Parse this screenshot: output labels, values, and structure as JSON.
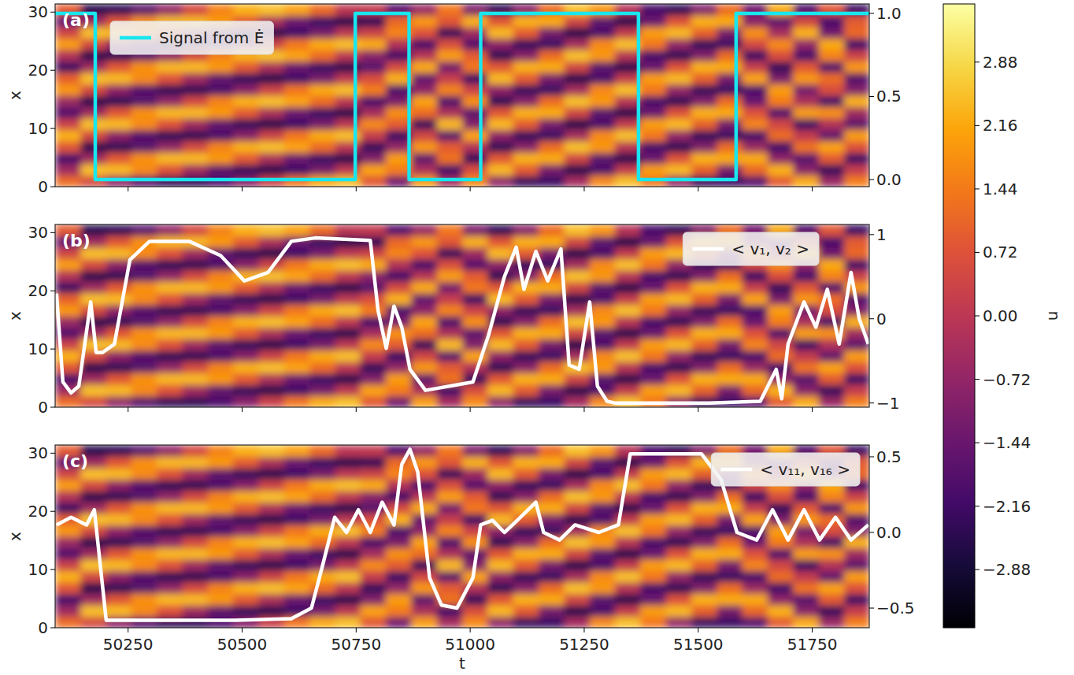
{
  "chart_data": {
    "type": "heatmap",
    "xlabel": "t",
    "ylabel": "x",
    "xlim": [
      50090,
      51875
    ],
    "xticks": [
      50250,
      50500,
      50750,
      51000,
      51250,
      51500,
      51750
    ],
    "ylim": [
      0,
      31.4
    ],
    "yticks": [
      0,
      10,
      20,
      30
    ],
    "t_bins": [
      50090,
      50146,
      50202,
      50257,
      50313,
      50369,
      50425,
      50480,
      50536,
      50592,
      50648,
      50704,
      50759,
      50815,
      50871,
      50927,
      50983,
      51038,
      51094,
      51150,
      51206,
      51262,
      51317,
      51373,
      51429,
      51485,
      51541,
      51596,
      51652,
      51708,
      51764,
      51820,
      51875
    ],
    "x_bins": [
      0,
      1.96,
      3.93,
      5.89,
      7.85,
      9.81,
      11.78,
      13.74,
      15.7,
      17.66,
      19.63,
      21.59,
      23.55,
      25.51,
      27.48,
      29.44,
      31.4
    ],
    "cells": [
      [
        1.2,
        -0.5,
        -2.0,
        0.8,
        2.3,
        0.3,
        -1.8,
        -0.6,
        1.9,
        1.0,
        -2.2,
        -0.2,
        2.0,
        0.4,
        -1.5,
        0.9
      ],
      [
        0.5,
        2.5,
        -0.5,
        -2.5,
        0.5,
        2.5,
        -0.5,
        -2.5,
        0.5,
        2.5,
        -0.5,
        -2.5,
        0.5,
        2.5,
        -0.5,
        -2.5
      ],
      [
        -0.8,
        2.4,
        0.8,
        -2.4,
        -0.8,
        2.4,
        0.8,
        -2.4,
        -0.8,
        2.4,
        0.8,
        -2.4,
        -0.8,
        2.4,
        0.8,
        -2.4
      ],
      [
        -1.8,
        1.7,
        1.8,
        -1.7,
        -1.8,
        1.7,
        1.8,
        -1.7,
        -1.8,
        1.7,
        1.8,
        -1.7,
        -1.8,
        1.7,
        1.8,
        -1.7
      ],
      [
        -2.4,
        0.7,
        2.4,
        -0.7,
        -2.4,
        0.7,
        2.4,
        -0.7,
        -2.4,
        0.7,
        2.4,
        -0.7,
        -2.4,
        0.7,
        2.4,
        -0.7
      ],
      [
        -2.4,
        -0.5,
        2.4,
        0.5,
        -2.4,
        -0.5,
        2.4,
        0.5,
        -2.4,
        -0.5,
        2.4,
        0.5,
        -2.4,
        -0.5,
        2.4,
        0.5
      ],
      [
        -1.9,
        -1.6,
        1.9,
        1.6,
        -1.9,
        -1.6,
        1.9,
        1.6,
        -1.9,
        -1.6,
        1.9,
        1.6,
        -1.9,
        -1.6,
        1.9,
        1.6
      ],
      [
        -0.9,
        -2.3,
        0.9,
        2.3,
        -0.9,
        -2.3,
        0.9,
        2.3,
        -0.9,
        -2.3,
        0.9,
        2.3,
        -0.9,
        -2.3,
        0.9,
        2.3
      ],
      [
        0.3,
        -2.5,
        -0.3,
        2.5,
        0.3,
        -2.5,
        -0.3,
        2.5,
        0.3,
        -2.5,
        -0.3,
        2.5,
        0.3,
        -2.5,
        -0.3,
        2.5
      ],
      [
        1.4,
        -2.1,
        -1.4,
        2.1,
        1.4,
        -2.1,
        -1.4,
        2.1,
        1.4,
        -2.1,
        -1.4,
        2.1,
        1.4,
        -2.1,
        -1.4,
        2.1
      ],
      [
        2.2,
        -1.2,
        -2.2,
        1.2,
        2.2,
        -1.2,
        -2.2,
        1.2,
        2.2,
        -1.2,
        -2.2,
        1.2,
        2.2,
        -1.2,
        -2.2,
        1.2
      ],
      [
        2.5,
        0,
        -2.5,
        0,
        2.5,
        0,
        -2.5,
        0,
        2.5,
        0,
        -2.5,
        0,
        2.5,
        0,
        -2.5,
        0
      ],
      [
        0.8,
        2.1,
        -1.0,
        -2.3,
        0.2,
        1.7,
        -0.4,
        -2.0,
        1.5,
        0.6,
        -1.7,
        -0.9,
        2.2,
        0.3,
        -2.4,
        0.1
      ],
      [
        -1.3,
        1.5,
        2.0,
        -0.7,
        -2.2,
        0.9,
        1.8,
        -1.1,
        -1.9,
        2.3,
        0.5,
        -2.1,
        -0.2,
        1.6,
        1.1,
        -1.8
      ],
      [
        2.0,
        -0.3,
        -1.6,
        1.9,
        0.4,
        -2.3,
        1.2,
        2.1,
        -0.8,
        -1.5,
        2.2,
        -0.1,
        -2.0,
        0.7,
        1.9,
        -0.6
      ],
      [
        -0.4,
        -2.1,
        1.3,
        0.9,
        -1.7,
        2.4,
        -0.3,
        -1.9,
        1.6,
        0.2,
        -1.2,
        2.0,
        0.6,
        -2.3,
        0.8,
        1.4
      ],
      [
        1.7,
        0.6,
        -2.3,
        -0.2,
        2.1,
        -1.0,
        -1.6,
        1.8,
        0.3,
        -2.2,
        1.4,
        0.9,
        -1.8,
        -0.5,
        2.3,
        -1.1
      ],
      [
        -0.8,
        2.4,
        0.8,
        -2.4,
        -0.8,
        2.4,
        0.8,
        -2.4,
        -0.8,
        2.4,
        0.8,
        -2.4,
        -0.8,
        2.4,
        0.8,
        -2.4
      ],
      [
        -2.3,
        0.9,
        2.3,
        -0.9,
        -2.3,
        0.9,
        2.3,
        -0.9,
        -2.3,
        0.9,
        2.3,
        -0.9,
        -2.3,
        0.9,
        2.3,
        -0.9
      ],
      [
        -2.2,
        -1.2,
        2.2,
        1.2,
        -2.2,
        -1.2,
        2.2,
        1.2,
        -2.2,
        -1.2,
        2.2,
        1.2,
        -2.2,
        -1.2,
        2.2,
        1.2
      ],
      [
        -0.4,
        -2.5,
        0.4,
        2.5,
        -0.4,
        -2.5,
        0.4,
        2.5,
        -0.4,
        -2.5,
        0.4,
        2.5,
        -0.4,
        -2.5,
        0.4,
        2.5
      ],
      [
        1.7,
        -1.9,
        -1.7,
        1.9,
        1.7,
        -1.9,
        -1.7,
        1.9,
        1.7,
        -1.9,
        -1.7,
        1.9,
        1.7,
        -1.9,
        -1.7,
        1.9
      ],
      [
        2.5,
        0.1,
        -2.5,
        -0.1,
        2.5,
        0.1,
        -2.5,
        -0.1,
        2.5,
        0.1,
        -2.5,
        -0.1,
        2.5,
        0.1,
        -2.5,
        -0.1
      ],
      [
        1.4,
        2.0,
        -1.4,
        -2.0,
        1.4,
        2.0,
        -1.4,
        -2.0,
        1.4,
        2.0,
        -1.4,
        -2.0,
        1.4,
        2.0,
        -1.4,
        -2.0
      ],
      [
        -0.7,
        2.4,
        0.7,
        -2.4,
        -0.7,
        2.4,
        0.7,
        -2.4,
        -0.7,
        2.4,
        0.7,
        -2.4,
        -0.7,
        2.4,
        0.7,
        -2.4
      ],
      [
        -2.3,
        1.0,
        2.3,
        -1.0,
        -2.3,
        1.0,
        2.3,
        -1.0,
        -2.3,
        1.0,
        2.3,
        -1.0,
        -2.3,
        1.0,
        2.3,
        -1.0
      ],
      [
        -2.2,
        -1.2,
        2.2,
        1.2,
        -2.2,
        -1.2,
        2.2,
        1.2,
        -2.2,
        -1.2,
        2.2,
        1.2,
        -2.2,
        -1.2,
        2.2,
        1.2
      ],
      [
        -1.8,
        1.1,
        2.2,
        -0.6,
        -2.0,
        1.6,
        0.7,
        -1.4,
        -1.9,
        2.1,
        0.2,
        -2.2,
        0.5,
        1.8,
        -0.9,
        -1.3
      ],
      [
        0.9,
        2.3,
        -0.8,
        -2.1,
        1.2,
        0.4,
        -1.9,
        1.5,
        2.0,
        -1.1,
        -2.3,
        0.6,
        1.7,
        -0.4,
        -1.6,
        2.2
      ],
      [
        2.2,
        -0.9,
        -1.7,
        1.3,
        0.1,
        -2.2,
        2.0,
        -0.3,
        -1.2,
        1.9,
        0.8,
        -2.0,
        -0.7,
        2.3,
        0.4,
        -1.9
      ],
      [
        -0.6,
        -2.3,
        0.9,
        2.1,
        -1.5,
        -0.2,
        1.8,
        -2.1,
        0.6,
        1.2,
        -1.9,
        1.6,
        2.2,
        -1.3,
        -2.0,
        0.8
      ],
      [
        1.5,
        0.2,
        -2.2,
        0.7,
        2.0,
        -1.6,
        -0.5,
        2.3,
        -1.0,
        -1.8,
        1.9,
        0.3,
        -2.1,
        1.1,
        0.9,
        -2.2
      ]
    ],
    "colorbar": {
      "label": "u",
      "lim": [
        -3.54,
        3.54
      ],
      "ticks": [
        {
          "value": -2.88,
          "label": "−2.88"
        },
        {
          "value": -2.16,
          "label": "−2.16"
        },
        {
          "value": -1.44,
          "label": "−1.44"
        },
        {
          "value": -0.72,
          "label": "−0.72"
        },
        {
          "value": 0,
          "label": "0.00"
        },
        0.72,
        1.44,
        2.16,
        2.88
      ]
    },
    "panels": [
      {
        "letter": "(a)",
        "legend": "upper left",
        "y2lim": [
          -0.043,
          1.057
        ],
        "y2ticks": [
          {
            "value": 0,
            "label": "0.0"
          },
          0.5,
          {
            "value": 1,
            "label": "1.0"
          }
        ],
        "series": [
          {
            "name": "Signal from Ė",
            "color": "#19e6ee",
            "x": [
              50090,
              50178,
              50178,
              50748,
              50748,
              50866,
              50866,
              51023,
              51023,
              51369,
              51369,
              51583,
              51583,
              51875
            ],
            "values": [
              1,
              1,
              0,
              0,
              1,
              1,
              0,
              0,
              1,
              1,
              0,
              0,
              1,
              1
            ]
          }
        ]
      },
      {
        "letter": "(b)",
        "legend": "upper right",
        "y2lim": [
          -1.05,
          1.12
        ],
        "y2ticks": [
          {
            "value": -1,
            "label": "−1"
          },
          0,
          1
        ],
        "series": [
          {
            "name": "< v₁, v₂ >",
            "color": "#ffffff",
            "x": [
              50093,
              50107,
              50125,
              50142,
              50168,
              50180,
              50194,
              50220,
              50254,
              50297,
              50384,
              50453,
              50505,
              50557,
              50608,
              50660,
              50781,
              50798,
              50816,
              50833,
              50850,
              50868,
              50902,
              51006,
              51040,
              51075,
              51101,
              51118,
              51144,
              51170,
              51199,
              51217,
              51239,
              51262,
              51279,
              51300,
              51317,
              51524,
              51636,
              51671,
              51683,
              51697,
              51732,
              51758,
              51783,
              51809,
              51835,
              51853,
              51873
            ],
            "values": [
              0.3,
              -0.75,
              -0.88,
              -0.8,
              0.2,
              -0.4,
              -0.4,
              -0.3,
              0.7,
              0.92,
              0.92,
              0.75,
              0.45,
              0.55,
              0.92,
              0.96,
              0.93,
              0.1,
              -0.35,
              0.15,
              -0.1,
              -0.6,
              -0.85,
              -0.75,
              -0.2,
              0.5,
              0.85,
              0.35,
              0.8,
              0.45,
              0.83,
              -0.55,
              -0.6,
              0.2,
              -0.8,
              -0.98,
              -1.0,
              -1.0,
              -0.98,
              -0.6,
              -0.95,
              -0.3,
              0.2,
              -0.1,
              0.35,
              -0.3,
              0.55,
              0.0,
              -0.3
            ]
          }
        ]
      },
      {
        "letter": "(c)",
        "legend": "upper right",
        "y2lim": [
          -0.63,
          0.578
        ],
        "y2ticks": [
          {
            "value": -0.5,
            "label": "−0.5"
          },
          {
            "value": 0,
            "label": "0.0"
          },
          0.5
        ],
        "series": [
          {
            "name": "< v₁₁, v₁₆ >",
            "color": "#ffffff",
            "x": [
              50093,
              50125,
              50159,
              50176,
              50202,
              50315,
              50487,
              50608,
              50652,
              50678,
              50703,
              50729,
              50755,
              50781,
              50807,
              50833,
              50850,
              50868,
              50885,
              50911,
              50937,
              50971,
              51006,
              51023,
              51049,
              51075,
              51110,
              51144,
              51161,
              51196,
              51230,
              51282,
              51325,
              51351,
              51421,
              51507,
              51550,
              51585,
              51628,
              51663,
              51697,
              51732,
              51766,
              51801,
              51835,
              51873
            ],
            "values": [
              0.05,
              0.1,
              0.05,
              0.15,
              -0.58,
              -0.58,
              -0.58,
              -0.57,
              -0.5,
              -0.2,
              0.1,
              0.0,
              0.15,
              0.0,
              0.2,
              0.05,
              0.45,
              0.55,
              0.4,
              -0.3,
              -0.48,
              -0.5,
              -0.3,
              0.05,
              0.08,
              0.0,
              0.1,
              0.2,
              0.0,
              -0.05,
              0.05,
              0.0,
              0.05,
              0.52,
              0.52,
              0.52,
              0.35,
              0.0,
              -0.05,
              0.15,
              -0.05,
              0.15,
              -0.05,
              0.1,
              -0.05,
              0.05
            ]
          }
        ]
      }
    ]
  }
}
